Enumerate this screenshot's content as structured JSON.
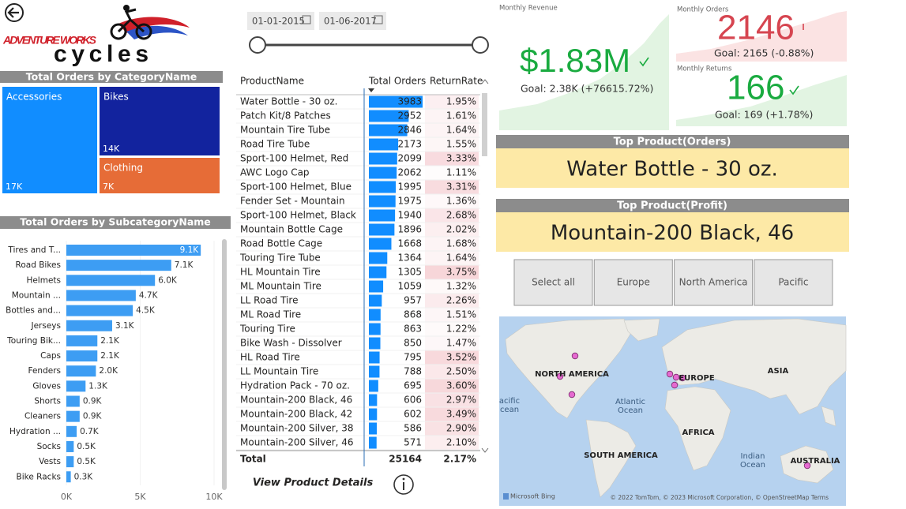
{
  "logo": {
    "line1": "ADVENTURE WORKS",
    "line2": "cycles"
  },
  "category_treemap": {
    "title": "Total Orders by CategoryName",
    "items": [
      {
        "name": "Accessories",
        "value": 17000,
        "label": "17K",
        "color": "#118dff"
      },
      {
        "name": "Bikes",
        "value": 14000,
        "label": "14K",
        "color": "#12239e"
      },
      {
        "name": "Clothing",
        "value": 7000,
        "label": "7K",
        "color": "#e66c37"
      }
    ]
  },
  "subcategory_bars": {
    "title": "Total Orders by SubcategoryName",
    "categories": [
      "Tires and T...",
      "Road Bikes",
      "Helmets",
      "Mountain ...",
      "Bottles and...",
      "Jerseys",
      "Touring Bik...",
      "Caps",
      "Fenders",
      "Gloves",
      "Shorts",
      "Cleaners",
      "Hydration ...",
      "Socks",
      "Vests",
      "Bike Racks"
    ],
    "values": [
      9100,
      7100,
      6000,
      4700,
      4500,
      3100,
      2100,
      2100,
      2000,
      1300,
      900,
      900,
      700,
      500,
      500,
      300
    ],
    "value_labels": [
      "9.1K",
      "7.1K",
      "6.0K",
      "4.7K",
      "4.5K",
      "3.1K",
      "2.1K",
      "2.1K",
      "2.0K",
      "1.3K",
      "0.9K",
      "0.9K",
      "0.7K",
      "0.5K",
      "0.5K",
      "0.3K"
    ],
    "color": "#3d9df3",
    "xlim": [
      0,
      10000
    ],
    "xticks": [
      {
        "value": 0,
        "label": "0K"
      },
      {
        "value": 5000,
        "label": "5K"
      },
      {
        "value": 10000,
        "label": "10K"
      }
    ]
  },
  "date_range": {
    "start": "01-01-2015",
    "end": "01-06-2017"
  },
  "table": {
    "columns": [
      "ProductName",
      "Total Orders",
      "ReturnRate"
    ],
    "rows": [
      {
        "product": "Water Bottle - 30 oz.",
        "orders": 3983,
        "return_rate": {
          "value": 1.95,
          "label": "1.95%"
        }
      },
      {
        "product": "Patch Kit/8 Patches",
        "orders": 2952,
        "return_rate": {
          "value": 1.61,
          "label": "1.61%"
        }
      },
      {
        "product": "Mountain Tire Tube",
        "orders": 2846,
        "return_rate": {
          "value": 1.64,
          "label": "1.64%"
        }
      },
      {
        "product": "Road Tire Tube",
        "orders": 2173,
        "return_rate": {
          "value": 1.55,
          "label": "1.55%"
        }
      },
      {
        "product": "Sport-100 Helmet, Red",
        "orders": 2099,
        "return_rate": {
          "value": 3.33,
          "label": "3.33%"
        }
      },
      {
        "product": "AWC Logo Cap",
        "orders": 2062,
        "return_rate": {
          "value": 1.11,
          "label": "1.11%"
        }
      },
      {
        "product": "Sport-100 Helmet, Blue",
        "orders": 1995,
        "return_rate": {
          "value": 3.31,
          "label": "3.31%"
        }
      },
      {
        "product": "Fender Set - Mountain",
        "orders": 1975,
        "return_rate": {
          "value": 1.36,
          "label": "1.36%"
        }
      },
      {
        "product": "Sport-100 Helmet, Black",
        "orders": 1940,
        "return_rate": {
          "value": 2.68,
          "label": "2.68%"
        }
      },
      {
        "product": "Mountain Bottle Cage",
        "orders": 1896,
        "return_rate": {
          "value": 2.02,
          "label": "2.02%"
        }
      },
      {
        "product": "Road Bottle Cage",
        "orders": 1668,
        "return_rate": {
          "value": 1.68,
          "label": "1.68%"
        }
      },
      {
        "product": "Touring Tire Tube",
        "orders": 1364,
        "return_rate": {
          "value": 1.64,
          "label": "1.64%"
        }
      },
      {
        "product": "HL Mountain Tire",
        "orders": 1305,
        "return_rate": {
          "value": 3.75,
          "label": "3.75%"
        }
      },
      {
        "product": "ML Mountain Tire",
        "orders": 1059,
        "return_rate": {
          "value": 1.32,
          "label": "1.32%"
        }
      },
      {
        "product": "LL Road Tire",
        "orders": 957,
        "return_rate": {
          "value": 2.26,
          "label": "2.26%"
        }
      },
      {
        "product": "ML Road Tire",
        "orders": 868,
        "return_rate": {
          "value": 1.51,
          "label": "1.51%"
        }
      },
      {
        "product": "Touring Tire",
        "orders": 863,
        "return_rate": {
          "value": 1.22,
          "label": "1.22%"
        }
      },
      {
        "product": "Bike Wash - Dissolver",
        "orders": 850,
        "return_rate": {
          "value": 1.47,
          "label": "1.47%"
        }
      },
      {
        "product": "HL Road Tire",
        "orders": 795,
        "return_rate": {
          "value": 3.52,
          "label": "3.52%"
        }
      },
      {
        "product": "LL Mountain Tire",
        "orders": 788,
        "return_rate": {
          "value": 2.5,
          "label": "2.50%"
        }
      },
      {
        "product": "Hydration Pack - 70 oz.",
        "orders": 695,
        "return_rate": {
          "value": 3.6,
          "label": "3.60%"
        }
      },
      {
        "product": "Mountain-200 Black, 46",
        "orders": 606,
        "return_rate": {
          "value": 2.97,
          "label": "2.97%"
        }
      },
      {
        "product": "Mountain-200 Black, 42",
        "orders": 602,
        "return_rate": {
          "value": 3.49,
          "label": "3.49%"
        }
      },
      {
        "product": "Mountain-200 Silver, 38",
        "orders": 586,
        "return_rate": {
          "value": 2.9,
          "label": "2.90%"
        }
      },
      {
        "product": "Mountain-200 Silver, 46",
        "orders": 571,
        "return_rate": {
          "value": 2.1,
          "label": "2.10%"
        }
      }
    ],
    "total": {
      "label": "Total",
      "orders": 25164,
      "return_rate": "2.17%"
    }
  },
  "details_link": "View Product Details",
  "kpis": {
    "revenue": {
      "title": "Monthly Revenue",
      "value": "$1.83M",
      "goal": "Goal: 2.38K (+76615.72%)"
    },
    "orders": {
      "title": "Monthly Orders",
      "value": "2146",
      "goal": "Goal: 2165 (-0.88%)"
    },
    "returns": {
      "title": "Monthly Returns",
      "value": "166",
      "goal": "Goal: 169 (+1.78%)"
    }
  },
  "top_products": [
    {
      "title": "Top Product(Orders)",
      "value": "Water Bottle - 30 oz."
    },
    {
      "title": "Top Product(Profit)",
      "value": "Mountain-200 Black, 46"
    }
  ],
  "region_slicer": [
    "Select all",
    "Europe",
    "North America",
    "Pacific"
  ],
  "map": {
    "labels": [
      "NORTH AMERICA",
      "EUROPE",
      "ASIA",
      "AFRICA",
      "SOUTH AMERICA",
      "AUSTRALIA",
      "Atlantic",
      "Ocean",
      "Indian",
      "Ocean",
      "acific",
      "cean"
    ],
    "logo": "Microsoft Bing",
    "attribution": "© 2022 TomTom, © 2023 Microsoft Corporation, © OpenStreetMap  Terms"
  }
}
